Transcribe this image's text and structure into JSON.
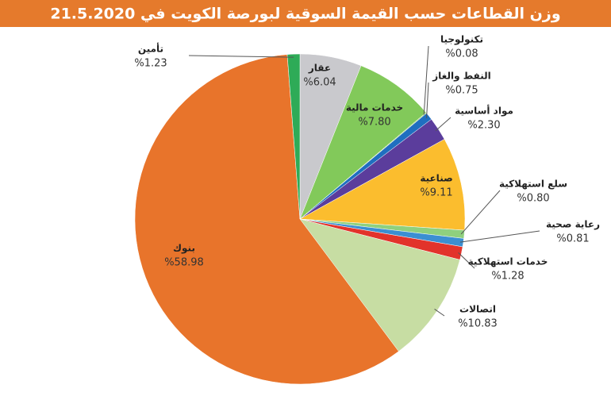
{
  "chart_data": {
    "type": "pie",
    "title": "وزن القطاعات حسب القيمة السوقية لبورصة الكويت في 21.5.2020",
    "categories": [
      "عقار",
      "خدمات مالية",
      "تكنولوجيا",
      "النفط والغاز",
      "مواد أساسية",
      "صناعية",
      "سلع استهلاكية",
      "رعاية صحية",
      "خدمات استهلاكية",
      "اتصالات",
      "بنوك",
      "تأمين"
    ],
    "values": [
      6.04,
      7.8,
      0.08,
      0.75,
      2.3,
      9.11,
      0.8,
      0.81,
      1.28,
      10.83,
      58.98,
      1.23
    ],
    "value_labels": [
      "%6.04",
      "%7.80",
      "%0.08",
      "%0.75",
      "%2.30",
      "%9.11",
      "%0.80",
      "%0.81",
      "%1.28",
      "%10.83",
      "%58.98",
      "%1.23"
    ],
    "colors": [
      "#c9c9cd",
      "#82c95a",
      "#9ccf6a",
      "#1f6fc0",
      "#5b3d9c",
      "#fbbd2e",
      "#8fd07e",
      "#3b8fd2",
      "#e2332b",
      "#c7dda3",
      "#e8742b",
      "#2eab57"
    ]
  }
}
